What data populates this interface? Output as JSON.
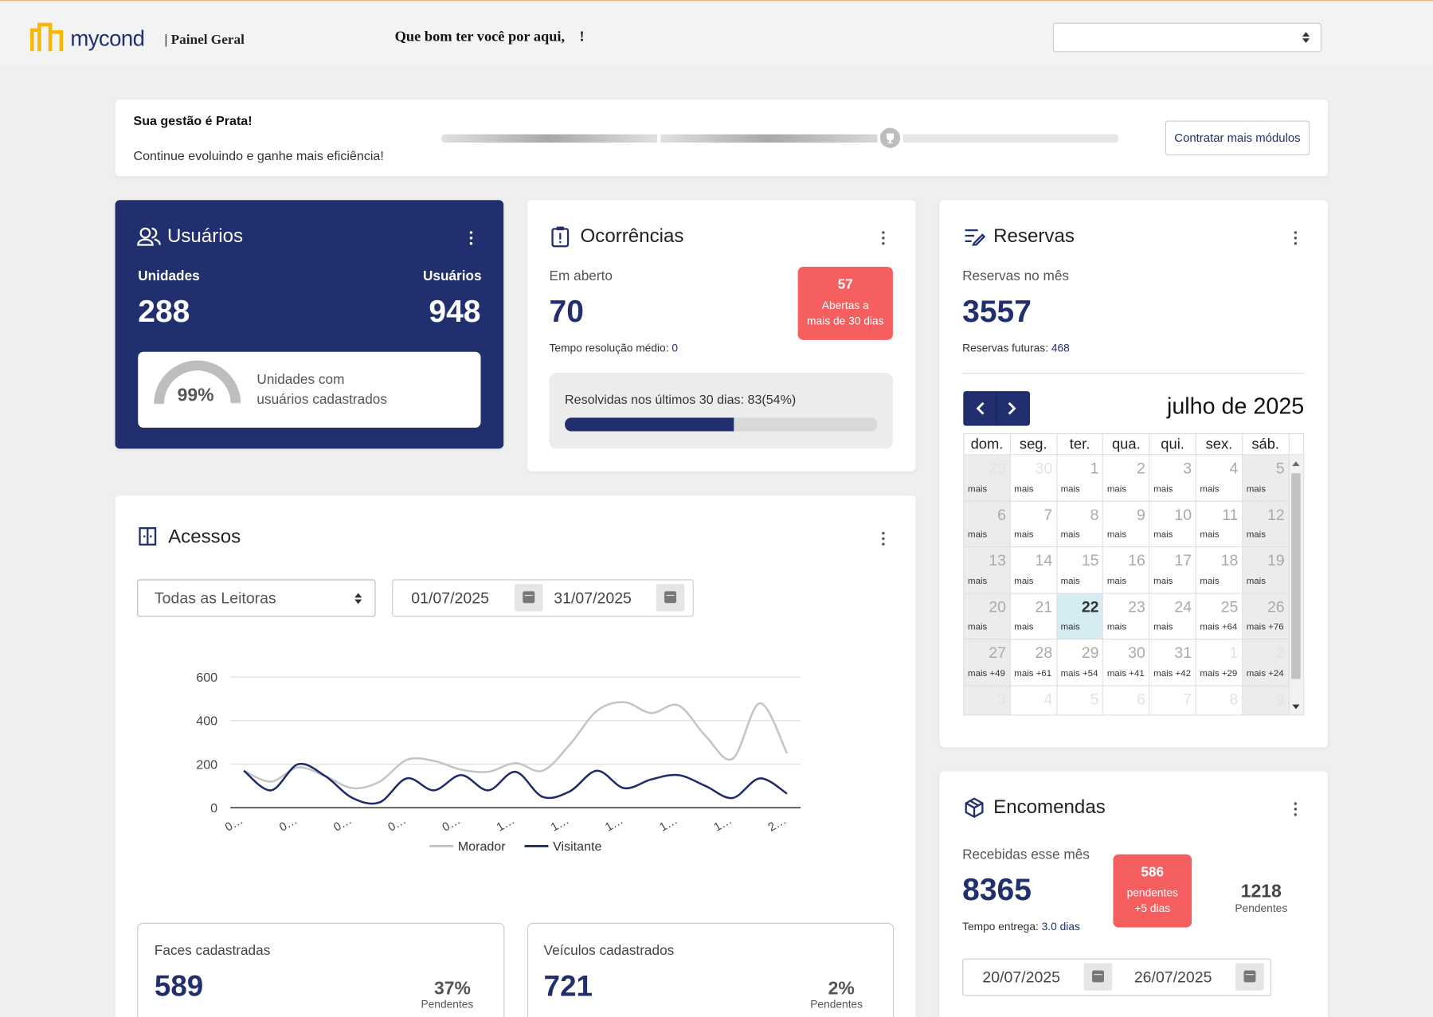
{
  "header": {
    "brand": "mycond",
    "section": "| Painel Geral",
    "greeting": "Que bom ter você por aqui,    !"
  },
  "banner": {
    "title": "Sua gestão é Prata!",
    "subtitle": "Continue evoluindo e ganhe mais eficiência!",
    "button": "Contratar mais módulos"
  },
  "usuarios": {
    "title": "Usuários",
    "units_label": "Unidades",
    "units": 288,
    "users_label": "Usuários",
    "users": 948,
    "coverage": 99,
    "coverage_label": "99%",
    "coverage_text": [
      "Unidades com",
      "usuários cadastrados"
    ]
  },
  "ocorrencias": {
    "title": "Ocorrências",
    "open_label": "Em aberto",
    "open": 70,
    "overdue": 57,
    "overdue_text": [
      "Abertas a",
      "mais de 30 dias"
    ],
    "avg_label": "Tempo resolução médio:",
    "avg": 0,
    "resolved_label": "Resolvidas nos últimos 30 dias:",
    "resolved_text": "83(54%)",
    "resolved_percent": 54
  },
  "reservas": {
    "title": "Reservas",
    "month_label": "Reservas no mês",
    "month": 3557,
    "future_label": "Reservas futuras:",
    "future": 468,
    "calendar": {
      "title": "julho de 2025",
      "weekdays": [
        "dom.",
        "seg.",
        "ter.",
        "qua.",
        "qui.",
        "sex.",
        "sáb."
      ],
      "highlighted_day": 22,
      "weeks": [
        [
          {
            "day": 29,
            "label": "mais"
          },
          {
            "day": 30,
            "label": "mais"
          },
          {
            "day": 1,
            "label": "mais"
          },
          {
            "day": 2,
            "label": "mais"
          },
          {
            "day": 3,
            "label": "mais"
          },
          {
            "day": 4,
            "label": "mais"
          },
          {
            "day": 5,
            "label": "mais"
          }
        ],
        [
          {
            "day": 6,
            "label": "mais"
          },
          {
            "day": 7,
            "label": "mais"
          },
          {
            "day": 8,
            "label": "mais"
          },
          {
            "day": 9,
            "label": "mais"
          },
          {
            "day": 10,
            "label": "mais"
          },
          {
            "day": 11,
            "label": "mais"
          },
          {
            "day": 12,
            "label": "mais"
          }
        ],
        [
          {
            "day": 13,
            "label": "mais"
          },
          {
            "day": 14,
            "label": "mais"
          },
          {
            "day": 15,
            "label": "mais"
          },
          {
            "day": 16,
            "label": "mais"
          },
          {
            "day": 17,
            "label": "mais"
          },
          {
            "day": 18,
            "label": "mais"
          },
          {
            "day": 19,
            "label": "mais"
          }
        ],
        [
          {
            "day": 20,
            "label": "mais"
          },
          {
            "day": 21,
            "label": "mais"
          },
          {
            "day": 22,
            "label": "mais"
          },
          {
            "day": 23,
            "label": "mais"
          },
          {
            "day": 24,
            "label": "mais"
          },
          {
            "day": 25,
            "label": "mais +64"
          },
          {
            "day": 26,
            "label": "mais +76"
          }
        ],
        [
          {
            "day": 27,
            "label": "mais +49"
          },
          {
            "day": 28,
            "label": "mais +61"
          },
          {
            "day": 29,
            "label": "mais +54"
          },
          {
            "day": 30,
            "label": "mais +41"
          },
          {
            "day": 31,
            "label": "mais +42"
          },
          {
            "day": 1,
            "label": "mais +29"
          },
          {
            "day": 2,
            "label": "mais +24"
          }
        ],
        [
          {
            "day": 3
          },
          {
            "day": 4
          },
          {
            "day": 5
          },
          {
            "day": 6
          },
          {
            "day": 7
          },
          {
            "day": 8
          },
          {
            "day": 9
          }
        ]
      ]
    }
  },
  "acessos": {
    "title": "Acessos",
    "reader": "Todas as Leitoras",
    "date_from": "01/07/2025",
    "date_to": "31/07/2025",
    "faces": {
      "label": "Faces cadastradas",
      "value": 589,
      "pending": "37%",
      "pending_label": "Pendentes"
    },
    "veiculos": {
      "label": "Veículos cadastrados",
      "value": 721,
      "pending": "2%",
      "pending_label": "Pendentes"
    }
  },
  "encomendas": {
    "title": "Encomendas",
    "received_label": "Recebidas esse mês",
    "received": 8365,
    "overdue": 586,
    "overdue_text": [
      "pendentes",
      "+5 dias"
    ],
    "pending": 1218,
    "pending_label": "Pendentes",
    "delivery_label": "Tempo entrega:",
    "delivery": "3.0 dias",
    "date_from": "20/07/2025",
    "date_to": "26/07/2025"
  },
  "chart_data": {
    "type": "line",
    "categories": [
      "0…",
      null,
      "0…",
      null,
      "0…",
      null,
      "0…",
      null,
      "0…",
      null,
      "1…",
      null,
      "1…",
      null,
      "1…",
      null,
      "1…",
      null,
      "1…",
      null,
      "2…"
    ],
    "series": [
      {
        "name": "Morador",
        "color": "#c4c4c4",
        "values": [
          170,
          120,
          185,
          145,
          90,
          120,
          220,
          215,
          175,
          165,
          205,
          170,
          290,
          445,
          485,
          435,
          470,
          330,
          225,
          480,
          250
        ]
      },
      {
        "name": "Visitante",
        "color": "#1f2a6b",
        "values": [
          170,
          80,
          200,
          145,
          45,
          25,
          135,
          80,
          150,
          80,
          165,
          50,
          75,
          170,
          90,
          130,
          150,
          100,
          45,
          135,
          65
        ]
      }
    ],
    "ylim": [
      0,
      600
    ],
    "yticks": [
      0,
      200,
      400,
      600
    ],
    "grid": true,
    "legend": "bottom"
  }
}
